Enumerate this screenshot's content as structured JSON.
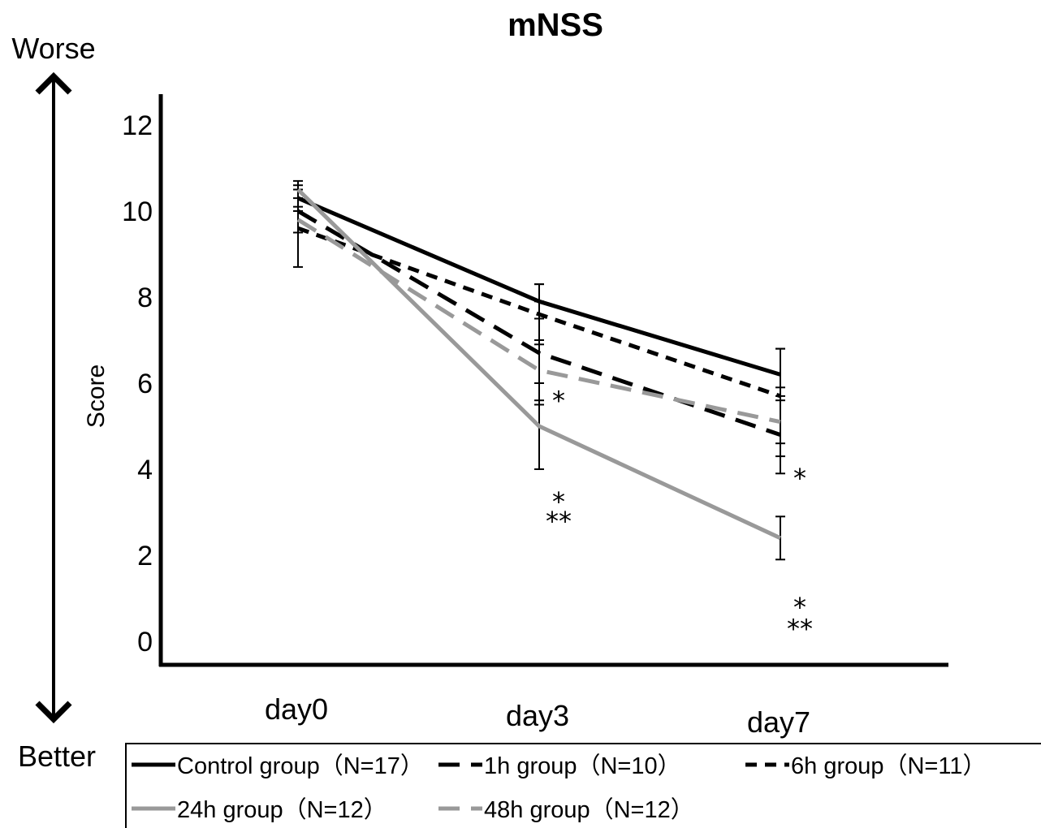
{
  "chart_data": {
    "type": "line",
    "title": "mNSS",
    "xlabel": "",
    "ylabel": "Score",
    "top_arrow_label": "Worse",
    "bottom_arrow_label": "Better",
    "categories": [
      "day0",
      "day3",
      "day7"
    ],
    "ylim": [
      0,
      12
    ],
    "yticks": [
      "0",
      "2",
      "4",
      "6",
      "8",
      "10",
      "12"
    ],
    "grid": false,
    "legend_position": "bottom",
    "series": [
      {
        "name": "Control group（N=17）",
        "values": [
          10.3,
          7.9,
          6.2
        ],
        "err": [
          0.3,
          0.4,
          0.6
        ],
        "color": "#000000",
        "dash": "solid"
      },
      {
        "name": "1h group（N=10）",
        "values": [
          10.0,
          6.7,
          4.8
        ],
        "err": [
          0.5,
          1.2,
          0.9
        ],
        "color": "#000000",
        "dash": "long"
      },
      {
        "name": "6h group（N=11）",
        "values": [
          9.6,
          7.6,
          5.7
        ],
        "err": [
          0.9,
          0.7,
          1.1
        ],
        "color": "#000000",
        "dash": "short"
      },
      {
        "name": "24h group（N=12）",
        "values": [
          10.5,
          5.0,
          2.4
        ],
        "err": [
          0.2,
          1.0,
          0.5
        ],
        "color": "#999999",
        "dash": "solid"
      },
      {
        "name": "48h group（N=12）",
        "values": [
          9.8,
          6.3,
          5.1
        ],
        "err": [
          0.3,
          0.7,
          0.8
        ],
        "color": "#999999",
        "dash": "long"
      }
    ],
    "annotations": [
      {
        "category": "day3",
        "value": 5.8,
        "text": "*"
      },
      {
        "category": "day3",
        "value": 3.45,
        "text": "*"
      },
      {
        "category": "day3",
        "value": 3.0,
        "text": "**"
      },
      {
        "category": "day7",
        "value": 4.0,
        "text": "*"
      },
      {
        "category": "day7",
        "value": 1.0,
        "text": "*"
      },
      {
        "category": "day7",
        "value": 0.5,
        "text": "**"
      }
    ]
  }
}
